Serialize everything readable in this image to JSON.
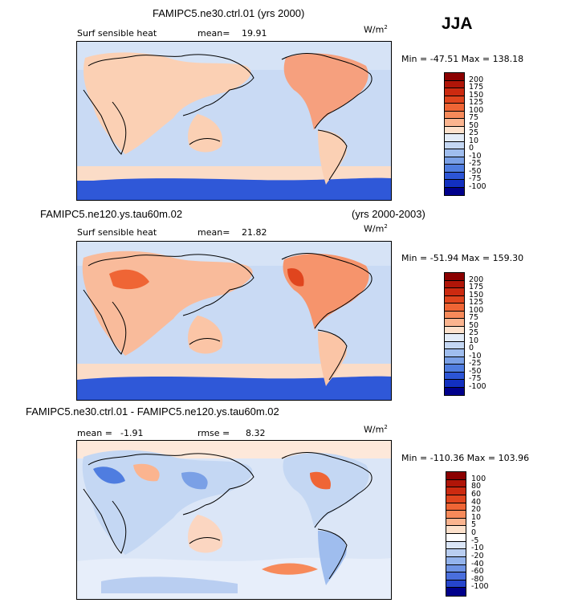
{
  "season": "JJA",
  "panels": [
    {
      "title": "FAMIPC5.ne30.ctrl.01 (yrs 2000)",
      "variable": "Surf sensible heat",
      "mean_label": "mean=",
      "mean_value": "19.91",
      "units": "W/m",
      "units_exp": "2",
      "minmax": "Min = -47.51 Max = 138.18",
      "colorbar_labels": [
        "200",
        "175",
        "150",
        "125",
        "100",
        "75",
        "50",
        "25",
        "10",
        "0",
        "-10",
        "-25",
        "-50",
        "-75",
        "-100"
      ]
    },
    {
      "title_left": "FAMIPC5.ne120.ys.tau60m.02",
      "title_right": "(yrs 2000-2003)",
      "variable": "Surf sensible heat",
      "mean_label": "mean=",
      "mean_value": "21.82",
      "units": "W/m",
      "units_exp": "2",
      "minmax": "Min = -51.94 Max = 159.30",
      "colorbar_labels": [
        "200",
        "175",
        "150",
        "125",
        "100",
        "75",
        "50",
        "25",
        "10",
        "0",
        "-10",
        "-25",
        "-50",
        "-75",
        "-100"
      ]
    },
    {
      "title": "FAMIPC5.ne30.ctrl.01 - FAMIPC5.ne120.ys.tau60m.02",
      "mean_label": "mean =",
      "mean_value": "-1.91",
      "rmse_label": "rmse =",
      "rmse_value": "8.32",
      "units": "W/m",
      "units_exp": "2",
      "minmax": "Min = -110.36 Max = 103.96",
      "colorbar_labels": [
        "100",
        "80",
        "60",
        "40",
        "20",
        "10",
        "5",
        "0",
        "-5",
        "-10",
        "-20",
        "-40",
        "-60",
        "-80",
        "-100"
      ]
    }
  ],
  "colors": {
    "scale_abs": [
      "#8b0000",
      "#b01508",
      "#cc2a10",
      "#e0451e",
      "#ef6535",
      "#f78a5a",
      "#fbb48f",
      "#fde1cc",
      "#e3ecf8",
      "#c4d7f3",
      "#9fbdee",
      "#7aa0e6",
      "#4f7de0",
      "#2c55d6",
      "#1230c0",
      "#00008b"
    ],
    "scale_diff": [
      "#8b0000",
      "#b01508",
      "#cc2a10",
      "#e0451e",
      "#ef6535",
      "#f78a5a",
      "#fbb48f",
      "#fde1cc",
      "#ffffff",
      "#dbe6f7",
      "#b9cef1",
      "#93b3ec",
      "#6e93e4",
      "#4a6fdd",
      "#2645cc",
      "#00008b"
    ],
    "ocean_warm": "#fbd6c1",
    "ocean_light": "#d4e1f5",
    "ocean_blue": "#a9c2ee",
    "antarctic": "#2f58d8",
    "coast": "#000000"
  }
}
